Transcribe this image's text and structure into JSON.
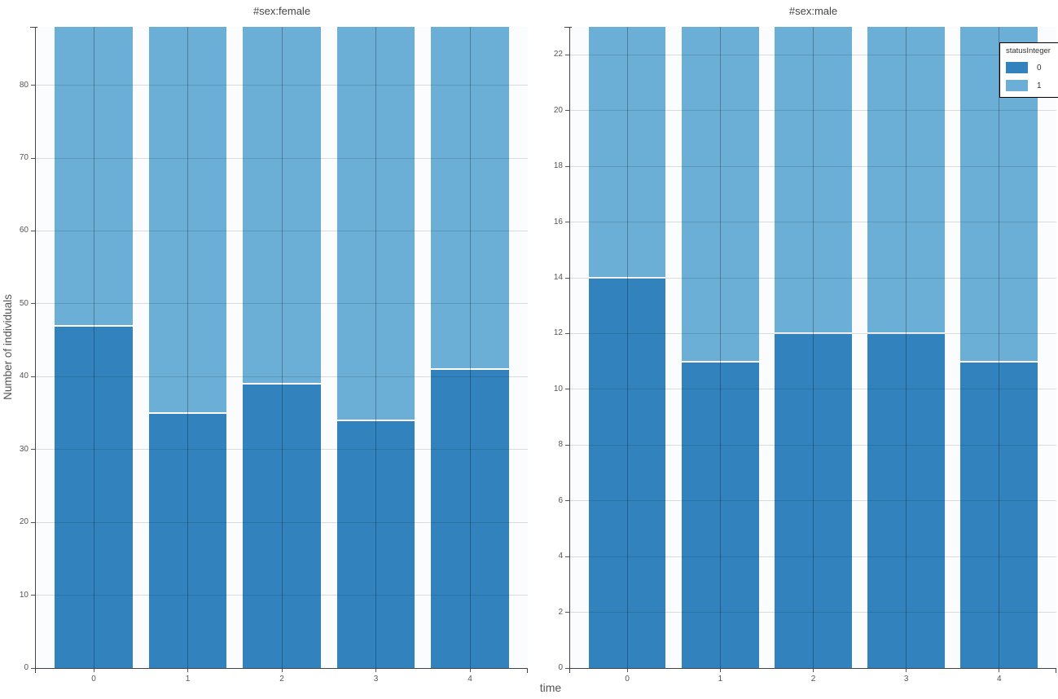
{
  "legend": {
    "title": "statusInteger",
    "items": [
      {
        "label": "0",
        "color": "#3182bd"
      },
      {
        "label": "1",
        "color": "#6baed6"
      }
    ]
  },
  "chart_data": [
    {
      "type": "bar",
      "stacked": true,
      "title": "#sex:female",
      "xlabel": "time",
      "ylabel": "Number of individuals",
      "categories": [
        "0",
        "1",
        "2",
        "3",
        "4"
      ],
      "series": [
        {
          "name": "0",
          "color": "#3182bd",
          "values": [
            47,
            35,
            39,
            34,
            41
          ]
        },
        {
          "name": "1",
          "color": "#6baed6",
          "values": [
            41,
            53,
            49,
            54,
            47
          ]
        }
      ],
      "stack_totals": [
        88,
        88,
        88,
        88,
        88
      ],
      "ylim": [
        0,
        88
      ],
      "yticks": [
        0,
        10,
        20,
        30,
        40,
        50,
        60,
        70,
        80
      ],
      "grid": true,
      "legend_position": "none"
    },
    {
      "type": "bar",
      "stacked": true,
      "title": "#sex:male",
      "xlabel": "time",
      "ylabel": "",
      "categories": [
        "0",
        "1",
        "2",
        "3",
        "4"
      ],
      "series": [
        {
          "name": "0",
          "color": "#3182bd",
          "values": [
            14,
            11,
            12,
            12,
            11
          ]
        },
        {
          "name": "1",
          "color": "#6baed6",
          "values": [
            9,
            12,
            11,
            11,
            12
          ]
        }
      ],
      "stack_totals": [
        23,
        23,
        23,
        23,
        23
      ],
      "ylim": [
        0,
        23
      ],
      "yticks": [
        0,
        2,
        4,
        6,
        8,
        10,
        12,
        14,
        16,
        18,
        20,
        22
      ],
      "grid": true,
      "legend_position": "top-right"
    }
  ],
  "colors": {
    "bar_status_0": "#3182bd",
    "bar_status_1": "#6baed6",
    "plot_background": "#fbfcfe",
    "axis_line": "#444444",
    "tick_label": "#555555",
    "title_text": "#444444",
    "legend_border": "#000000"
  }
}
